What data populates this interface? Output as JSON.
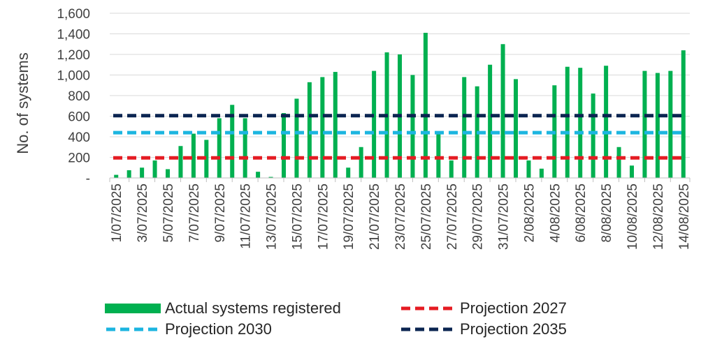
{
  "chart_data": {
    "type": "bar",
    "ylabel": "No. of systems",
    "ylim": [
      0,
      1600
    ],
    "yticks": [
      {
        "value": 0,
        "label": "-"
      },
      {
        "value": 200,
        "label": "200"
      },
      {
        "value": 400,
        "label": "400"
      },
      {
        "value": 600,
        "label": "600"
      },
      {
        "value": 800,
        "label": "800"
      },
      {
        "value": 1000,
        "label": "1,000"
      },
      {
        "value": 1200,
        "label": "1,200"
      },
      {
        "value": 1400,
        "label": "1,400"
      },
      {
        "value": 1600,
        "label": "1,600"
      }
    ],
    "categories": [
      "1/07/2025",
      "2/07/2025",
      "3/07/2025",
      "4/07/2025",
      "5/07/2025",
      "6/07/2025",
      "7/07/2025",
      "8/07/2025",
      "9/07/2025",
      "10/07/2025",
      "11/07/2025",
      "12/07/2025",
      "13/07/2025",
      "14/07/2025",
      "15/07/2025",
      "16/07/2025",
      "17/07/2025",
      "18/07/2025",
      "19/07/2025",
      "20/07/2025",
      "21/07/2025",
      "22/07/2025",
      "23/07/2025",
      "24/07/2025",
      "25/07/2025",
      "26/07/2025",
      "27/07/2025",
      "28/07/2025",
      "29/07/2025",
      "30/07/2025",
      "31/07/2025",
      "1/08/2025",
      "2/08/2025",
      "3/08/2025",
      "4/08/2025",
      "5/08/2025",
      "6/08/2025",
      "7/08/2025",
      "8/08/2025",
      "9/08/2025",
      "10/08/2025",
      "11/08/2025",
      "12/08/2025",
      "13/08/2025",
      "14/08/2025"
    ],
    "tick_labels": [
      "1/07/2025",
      "3/07/2025",
      "5/07/2025",
      "7/07/2025",
      "9/07/2025",
      "11/07/2025",
      "13/07/2025",
      "15/07/2025",
      "17/07/2025",
      "19/07/2025",
      "21/07/2025",
      "23/07/2025",
      "25/07/2025",
      "27/07/2025",
      "29/07/2025",
      "31/07/2025",
      "2/08/2025",
      "4/08/2025",
      "6/08/2025",
      "8/08/2025",
      "10/08/2025",
      "12/08/2025",
      "14/08/2025"
    ],
    "series": [
      {
        "name": "Actual systems registered",
        "kind": "bar",
        "color": "#00B050",
        "values": [
          30,
          75,
          100,
          170,
          85,
          310,
          430,
          370,
          580,
          710,
          580,
          60,
          10,
          630,
          770,
          930,
          980,
          1030,
          100,
          300,
          1040,
          1220,
          1200,
          1000,
          1410,
          430,
          170,
          980,
          890,
          1100,
          1300,
          960,
          170,
          90,
          900,
          1080,
          1070,
          820,
          1090,
          300,
          120,
          1040,
          1020,
          1040,
          1240
        ]
      },
      {
        "name": "Projection 2027",
        "kind": "hline",
        "color": "#E51C23",
        "value": 195
      },
      {
        "name": "Projection 2030",
        "kind": "hline",
        "color": "#1CB5E0",
        "value": 440
      },
      {
        "name": "Projection 2035",
        "kind": "hline",
        "color": "#0B2551",
        "value": 605
      }
    ],
    "legend": [
      {
        "label": "Actual systems registered",
        "style": "bar",
        "color": "#00B050"
      },
      {
        "label": "Projection 2027",
        "style": "dash",
        "color": "#E51C23"
      },
      {
        "label": "Projection 2030",
        "style": "dash",
        "color": "#1CB5E0"
      },
      {
        "label": "Projection 2035",
        "style": "dash",
        "color": "#0B2551"
      }
    ],
    "legend_position": "bottom"
  }
}
